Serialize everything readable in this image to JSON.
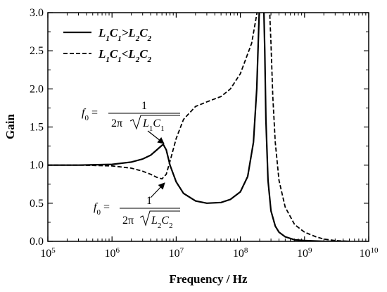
{
  "chart_data": {
    "type": "line",
    "title": "",
    "xlabel": "Frequency / Hz",
    "ylabel": "Gain",
    "xscale": "log",
    "xlim": [
      100000,
      10000000000
    ],
    "ylim": [
      0.0,
      3.0
    ],
    "x_tick_base": "10",
    "x_tick_exponents": [
      "5",
      "6",
      "7",
      "8",
      "9",
      "10"
    ],
    "y_tick_labels": [
      "0.0",
      "0.5",
      "1.0",
      "1.5",
      "2.0",
      "2.5",
      "3.0"
    ],
    "legend_position": "top-left",
    "series": [
      {
        "name_parts": [
          "L",
          "1",
          "C",
          "1",
          ">L",
          "2",
          "C",
          "2"
        ],
        "style": "solid",
        "x": [
          100000,
          300000,
          1000000,
          2000000,
          3000000,
          4000000,
          5000000,
          6000000,
          6300000,
          7000000,
          8000000,
          10000000,
          13000000,
          20000000,
          30000000,
          50000000,
          70000000,
          100000000,
          130000000,
          160000000,
          180000000,
          200000000,
          215000000,
          220000000,
          230000000,
          240000000,
          250000000,
          270000000,
          300000000,
          350000000,
          400000000,
          500000000,
          700000000,
          1000000000,
          2000000000,
          5000000000
        ],
        "y": [
          1.0,
          1.0,
          1.01,
          1.04,
          1.08,
          1.13,
          1.2,
          1.26,
          1.27,
          1.2,
          1.0,
          0.78,
          0.63,
          0.53,
          0.5,
          0.51,
          0.55,
          0.65,
          0.85,
          1.3,
          2.0,
          3.2,
          3.2,
          3.2,
          3.2,
          2.5,
          1.6,
          0.8,
          0.4,
          0.2,
          0.12,
          0.06,
          0.02,
          0.01,
          0.0,
          0.0
        ]
      },
      {
        "name_parts": [
          "L",
          "1",
          "C",
          "1",
          "<L",
          "2",
          "C",
          "2"
        ],
        "style": "dashed",
        "x": [
          100000,
          300000,
          1000000,
          2000000,
          3000000,
          4000000,
          5000000,
          6000000,
          7000000,
          8000000,
          10000000,
          13000000,
          20000000,
          30000000,
          50000000,
          70000000,
          100000000,
          150000000,
          200000000,
          240000000,
          260000000,
          280000000,
          300000000,
          320000000,
          350000000,
          400000000,
          500000000,
          700000000,
          1000000000,
          1500000000,
          2000000000,
          3000000000,
          5000000000
        ],
        "y": [
          1.0,
          1.0,
          0.99,
          0.96,
          0.92,
          0.88,
          0.84,
          0.82,
          0.88,
          1.05,
          1.35,
          1.6,
          1.77,
          1.83,
          1.9,
          2.0,
          2.2,
          2.6,
          3.2,
          3.2,
          3.2,
          3.2,
          2.6,
          1.9,
          1.3,
          0.8,
          0.45,
          0.22,
          0.12,
          0.06,
          0.03,
          0.01,
          0.0
        ]
      }
    ],
    "annotations": [
      {
        "lhs": "f",
        "lhs_sub": "0",
        "numerator": "1",
        "denominator_prefix": "2π",
        "radicand_parts": [
          "L",
          "1",
          "C",
          "1"
        ],
        "points_to": {
          "x": 6300000,
          "y": 1.27
        }
      },
      {
        "lhs": "f",
        "lhs_sub": "0",
        "numerator": "1",
        "denominator_prefix": "2π",
        "radicand_parts": [
          "L",
          "2",
          "C",
          "2"
        ],
        "points_to": {
          "x": 6000000,
          "y": 0.82
        }
      }
    ]
  }
}
